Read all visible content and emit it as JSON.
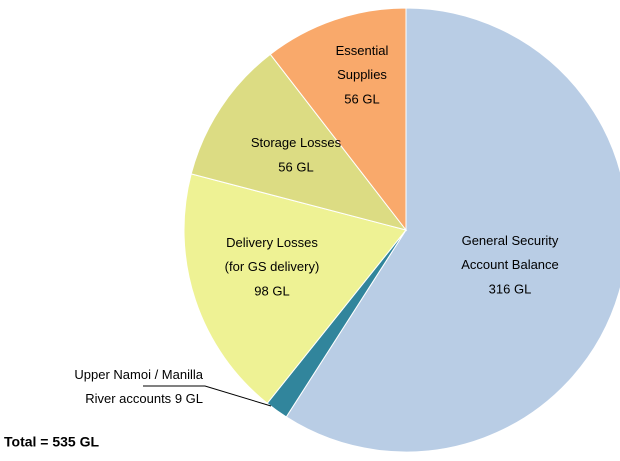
{
  "chart_data": {
    "type": "pie",
    "categories": [
      [
        "General Security",
        "Account Balance"
      ],
      [
        "Upper Namoi / Manilla",
        "River accounts"
      ],
      [
        "Delivery Losses",
        "(for GS delivery)"
      ],
      [
        "Storage Losses"
      ],
      [
        "Essential",
        "Supplies"
      ]
    ],
    "values": [
      316,
      9,
      98,
      56,
      56
    ],
    "value_labels": [
      "316 GL",
      "9 GL",
      "98 GL",
      "56 GL",
      "56 GL"
    ],
    "colors": [
      "#b9cde5",
      "#31859c",
      "#eef294",
      "#dcdc83",
      "#f9a96b"
    ],
    "annotation": "Total = 535 GL"
  }
}
